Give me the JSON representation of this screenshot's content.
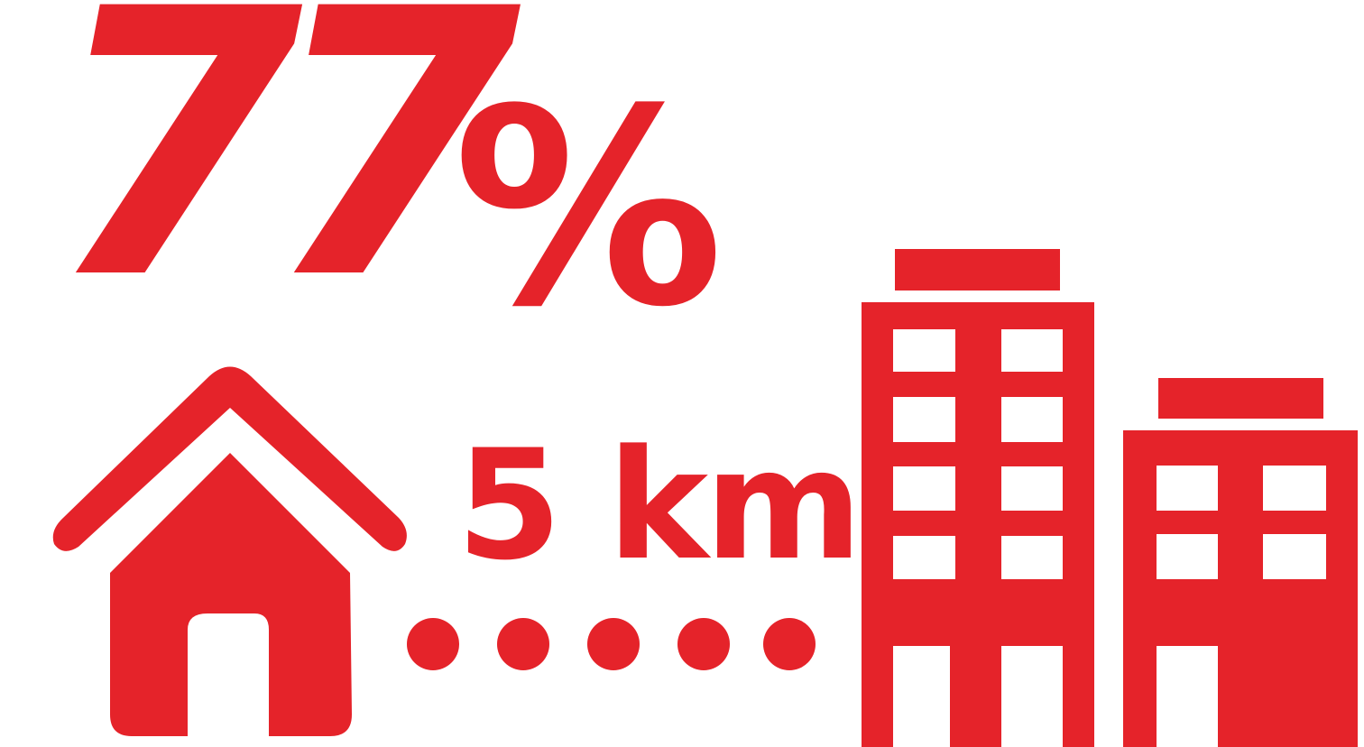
{
  "colors": {
    "accent": "#E5232A",
    "background": "#FFFFFF"
  },
  "stat": {
    "value": "77",
    "unit": "%"
  },
  "distance": {
    "label": "5 km"
  },
  "icons": {
    "home": "house-icon",
    "dots": "dotted-path-icon",
    "office": "office-buildings-icon"
  }
}
